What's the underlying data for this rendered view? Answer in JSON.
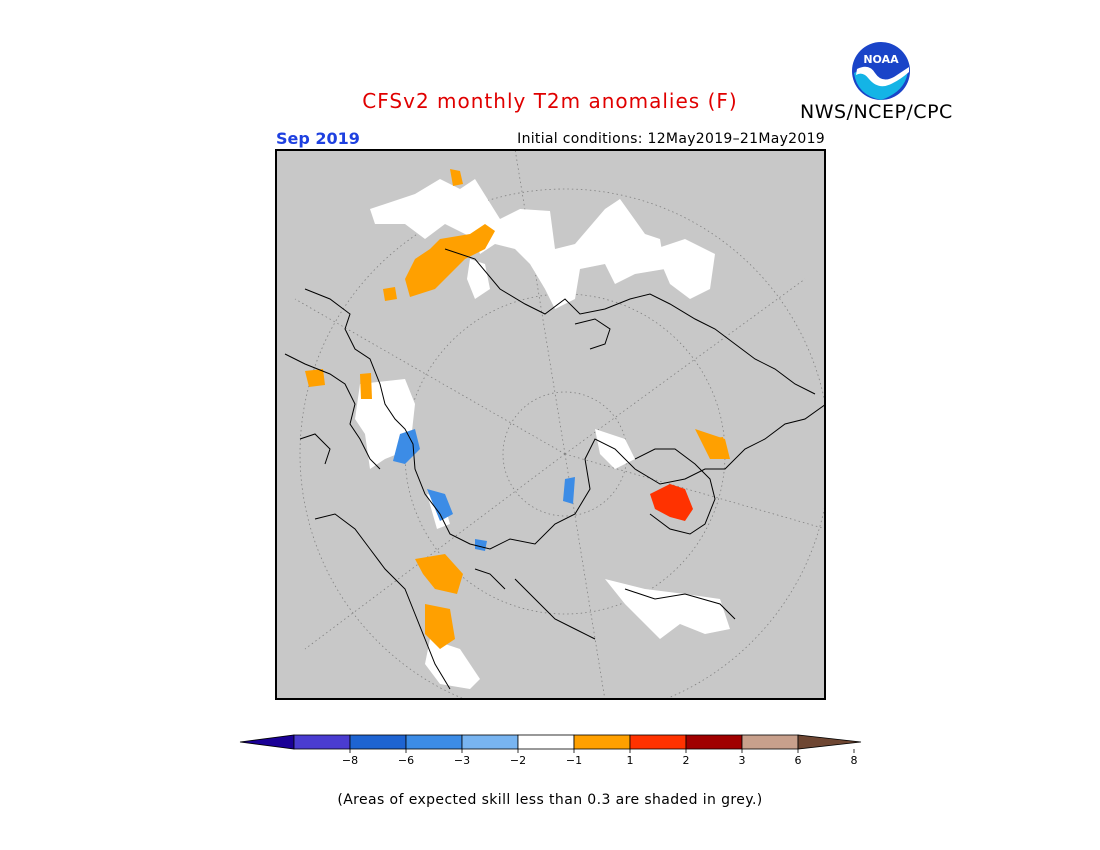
{
  "header": {
    "title": "CFSv2 monthly T2m anomalies (F)",
    "organization": "NWS/NCEP/CPC",
    "month": "Sep 2019",
    "initial_conditions": "Initial conditions: 12May2019–21May2019",
    "logo_text": "NOAA"
  },
  "map": {
    "projection": "north-polar-stereographic",
    "background_color": "#c8c8c8",
    "frame_color": "#000000"
  },
  "legend": {
    "tick_labels": [
      "-8",
      "-6",
      "-3",
      "-2",
      "-1",
      "1",
      "2",
      "3",
      "6",
      "8"
    ],
    "colors": [
      "#1a0096",
      "#4a3cd0",
      "#1e64d2",
      "#3c8ce6",
      "#78b4f0",
      "#ffffff",
      "#ffa000",
      "#ff3200",
      "#a00000",
      "#c8a08c",
      "#6e4632"
    ]
  },
  "footnote": "(Areas of expected skill less than 0.3 are shaded in grey.)"
}
